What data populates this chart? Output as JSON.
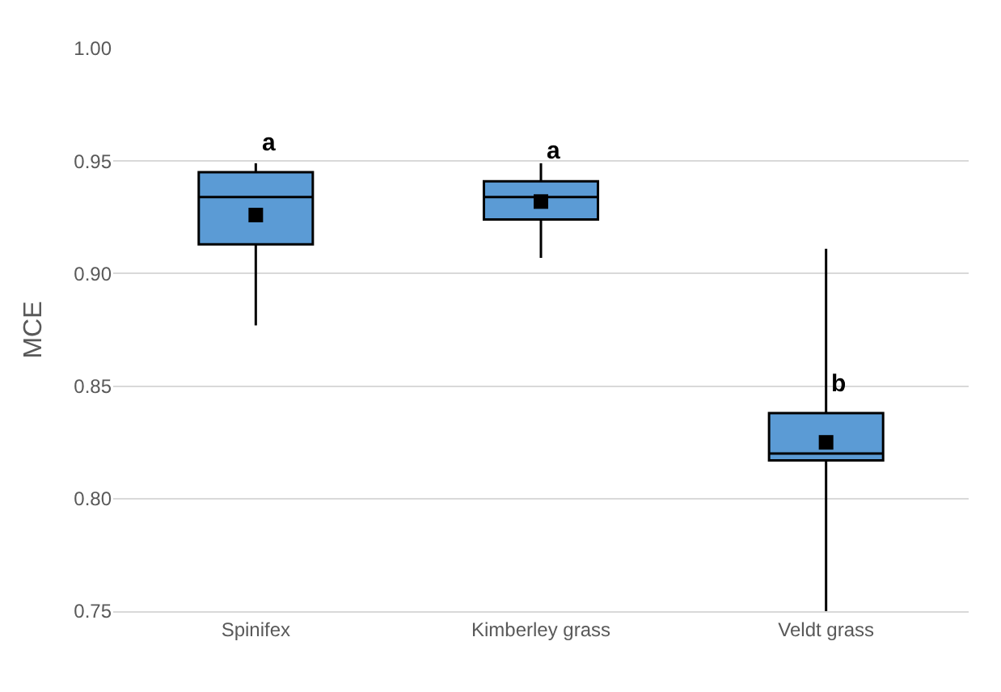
{
  "chart_data": {
    "type": "box",
    "ylabel": "MCE",
    "categories": [
      "Spinifex",
      "Kimberley grass",
      "Veldt grass"
    ],
    "boxes": [
      {
        "low": 0.877,
        "q1": 0.913,
        "median": 0.934,
        "q3": 0.945,
        "high": 0.949,
        "mean": 0.926
      },
      {
        "low": 0.907,
        "q1": 0.924,
        "median": 0.934,
        "q3": 0.941,
        "high": 0.949,
        "mean": 0.932
      },
      {
        "low": 0.75,
        "q1": 0.817,
        "median": 0.82,
        "q3": 0.838,
        "high": 0.911,
        "mean": 0.825
      }
    ],
    "color": "#5b9bd5",
    "marker": "square",
    "ylim": [
      0.75,
      1.0
    ],
    "yticks": [
      {
        "value": 0.75,
        "label": "0.75"
      },
      {
        "value": 0.8,
        "label": "0.80"
      },
      {
        "value": 0.85,
        "label": "0.85"
      },
      {
        "value": 0.9,
        "label": "0.90"
      },
      {
        "value": 0.95,
        "label": "0.95"
      },
      {
        "value": 1.0,
        "label": "1.00"
      }
    ],
    "grid": "y",
    "annotations": [
      "a",
      "a",
      "b"
    ]
  }
}
